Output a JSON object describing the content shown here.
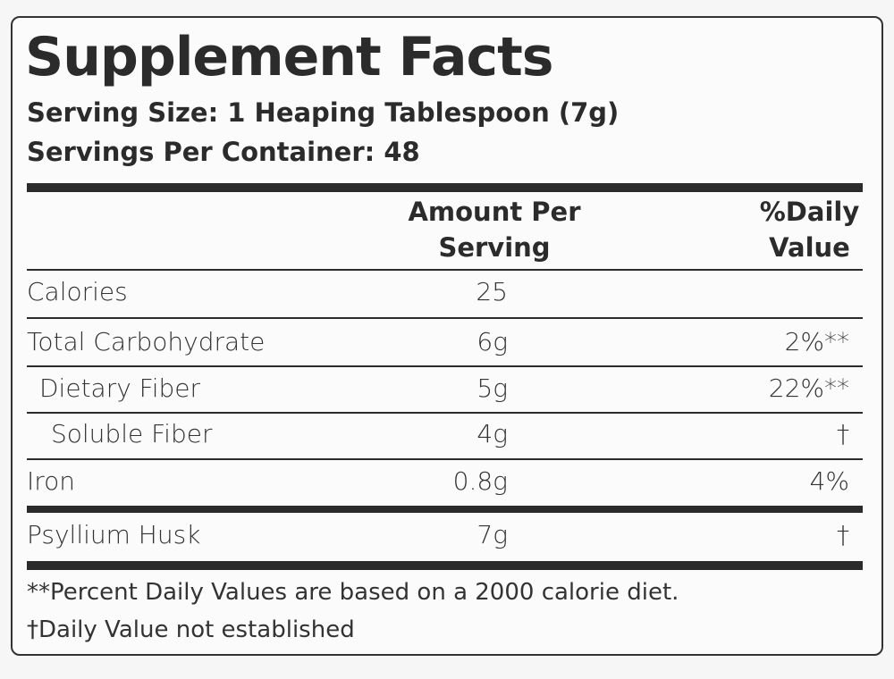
{
  "header": {
    "title": "Supplement Facts",
    "serving_size": "Serving Size: 1 Heaping Tablespoon (7g)",
    "servings_per_container": "Servings Per Container: 48"
  },
  "table": {
    "columns": [
      "Amount Per Serving",
      "%Daily Value"
    ],
    "rows": [
      {
        "name": "Calories",
        "amount": "25",
        "daily_value": null
      },
      {
        "name": "Total Carbohydrate",
        "amount": "6g",
        "daily_value": "2%**"
      },
      {
        "name": "Dietary Fiber",
        "amount": "5g",
        "daily_value": "22%**"
      },
      {
        "name": "Soluble Fiber",
        "amount": "4g",
        "daily_value": "†"
      },
      {
        "name": "Iron",
        "amount": "0.8g",
        "daily_value": "4%"
      },
      {
        "name": "Psyllium Husk",
        "amount": "7g",
        "daily_value": "†"
      }
    ]
  },
  "footnotes": [
    "**Percent Daily Values are based on a 2000 calorie diet.",
    "†Daily Value not established"
  ]
}
